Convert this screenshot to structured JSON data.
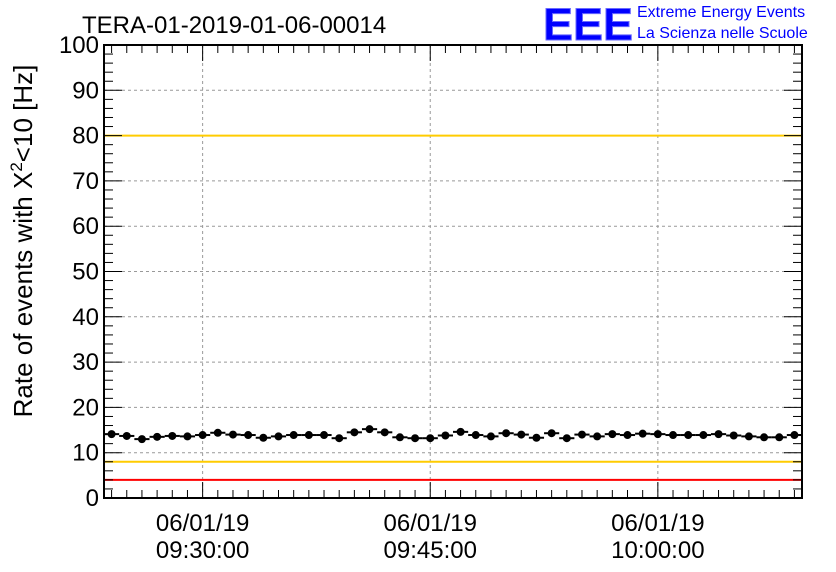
{
  "chart_data": {
    "type": "scatter",
    "title": "TERA-01-2019-01-06-00014",
    "ylabel": "Rate of events with X²<10 [Hz]",
    "ylabel_parts": {
      "prefix": "Rate of events with X",
      "sup": "2",
      "suffix": "<10 [Hz]"
    },
    "xlabel": "",
    "ylim": [
      0,
      100
    ],
    "yticks": [
      0,
      10,
      20,
      30,
      40,
      50,
      60,
      70,
      80,
      90,
      100
    ],
    "xlim": [
      "09:23:30",
      "10:09:30"
    ],
    "xticks": [
      {
        "time": "09:30:00",
        "date": "06/01/19",
        "label": "09:30:00"
      },
      {
        "time": "09:45:00",
        "date": "06/01/19",
        "label": "09:45:00"
      },
      {
        "time": "10:00:00",
        "date": "06/01/19",
        "label": "10:00:00"
      }
    ],
    "grid": true,
    "reference_lines": [
      {
        "y": 100,
        "color": "#ff0000"
      },
      {
        "y": 80,
        "color": "#ffcc00"
      },
      {
        "y": 8,
        "color": "#ffcc00"
      },
      {
        "y": 4,
        "color": "#ff0000"
      }
    ],
    "series": [
      {
        "x": [
          "09:24:00",
          "09:25:00",
          "09:26:00",
          "09:27:00",
          "09:28:00",
          "09:29:00",
          "09:30:00",
          "09:31:00",
          "09:32:00",
          "09:33:00",
          "09:34:00",
          "09:35:00",
          "09:36:00",
          "09:37:00",
          "09:38:00",
          "09:39:00",
          "09:40:00",
          "09:41:00",
          "09:42:00",
          "09:43:00",
          "09:44:00",
          "09:45:00",
          "09:46:00",
          "09:47:00",
          "09:48:00",
          "09:49:00",
          "09:50:00",
          "09:51:00",
          "09:52:00",
          "09:53:00",
          "09:54:00",
          "09:55:00",
          "09:56:00",
          "09:57:00",
          "09:58:00",
          "09:59:00",
          "10:00:00",
          "10:01:00",
          "10:02:00",
          "10:03:00",
          "10:04:00",
          "10:05:00",
          "10:06:00",
          "10:07:00",
          "10:08:00",
          "10:09:00"
        ],
        "y": [
          14.1,
          13.7,
          13.0,
          13.5,
          13.7,
          13.6,
          13.9,
          14.4,
          14.0,
          13.9,
          13.3,
          13.6,
          13.9,
          13.9,
          13.9,
          13.2,
          14.5,
          15.2,
          14.5,
          13.4,
          13.2,
          13.2,
          13.8,
          14.6,
          13.9,
          13.6,
          14.3,
          14.0,
          13.3,
          14.3,
          13.2,
          14.0,
          13.6,
          14.1,
          13.9,
          14.2,
          14.1,
          13.9,
          13.9,
          13.9,
          14.1,
          13.8,
          13.6,
          13.4,
          13.4,
          13.9
        ],
        "yerr": 0.5,
        "color": "#000000"
      }
    ]
  },
  "logo": {
    "mark": "EEE",
    "line1": "Extreme Energy Events",
    "line2": "La Scienza nelle Scuole",
    "color": "#0000ff"
  }
}
